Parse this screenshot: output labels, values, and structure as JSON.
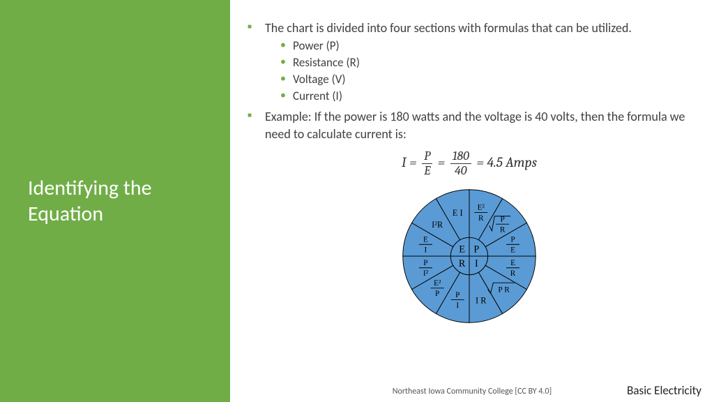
{
  "sidebar": {
    "title": "Identifying the Equation",
    "bg_color": "#70ad47",
    "text_color": "#ffffff",
    "title_fontsize": 30
  },
  "content": {
    "bullet_color": "#70ad47",
    "text_color": "#404040",
    "items": [
      {
        "text": "The chart is divided into four sections with formulas that can be utilized.",
        "sub": [
          "Power (P)",
          "Resistance (R)",
          "Voltage (V)",
          "Current (I)"
        ]
      },
      {
        "text": "Example:  If the power is 180 watts and the voltage is 40 volts, then the formula we need to calculate current is:"
      }
    ]
  },
  "equation": {
    "left": "I",
    "frac1_num": "P",
    "frac1_den": "E",
    "frac2_num": "180",
    "frac2_den": "40",
    "result": "4.5 Amps"
  },
  "wheel": {
    "type": "pie-formula-wheel",
    "fill_color": "#5b9bd5",
    "stroke_color": "#000000",
    "center_quadrants": [
      "P",
      "I",
      "R",
      "E"
    ],
    "outer_segments_start_deg": -90,
    "outer_segments": [
      {
        "label_frac": {
          "num": "E²",
          "den": "R"
        }
      },
      {
        "label_sqrt_frac": {
          "num": "P",
          "den": "R"
        }
      },
      {
        "label_frac": {
          "num": "P",
          "den": "E"
        }
      },
      {
        "label_frac": {
          "num": "E",
          "den": "R"
        }
      },
      {
        "label_sqrt": "P R"
      },
      {
        "label": "I R"
      },
      {
        "label_frac": {
          "num": "P",
          "den": "I"
        }
      },
      {
        "label_frac": {
          "num": "E²",
          "den": "P"
        }
      },
      {
        "label_frac": {
          "num": "P",
          "den": "I²"
        }
      },
      {
        "label_frac": {
          "num": "E",
          "den": "I"
        }
      },
      {
        "label": "I²R"
      },
      {
        "label": "E I"
      }
    ]
  },
  "footer": {
    "attribution": "Northeast Iowa Community College [CC BY 4.0]",
    "right": "Basic Electricity"
  }
}
